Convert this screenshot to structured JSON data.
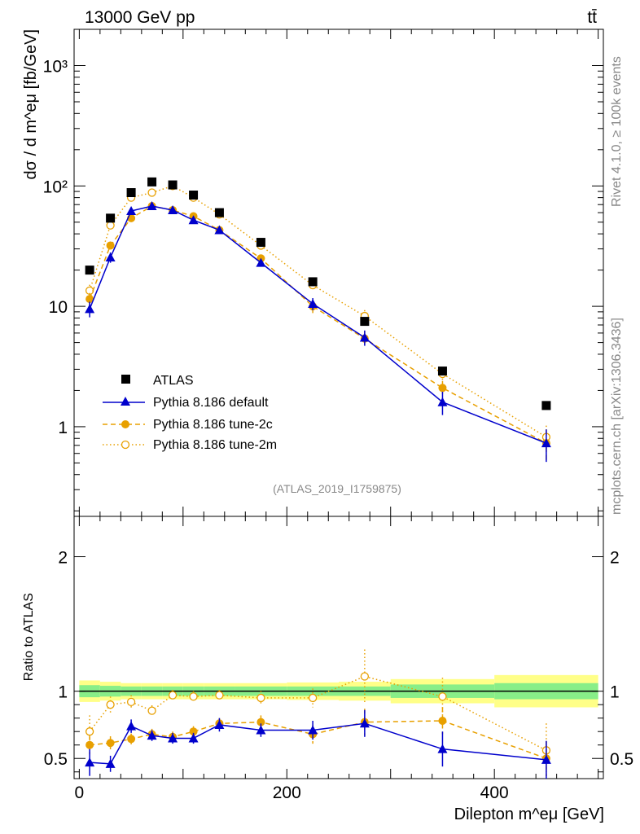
{
  "header": {
    "energy_label": "13000 GeV pp",
    "process_label": "tt̄"
  },
  "side_labels": {
    "rivet": "Rivet 4.1.0, ≥ 100k events",
    "mcplots": "mcplots.cern.ch [arXiv:1306.3436]"
  },
  "analysis_id": "(ATLAS_2019_I1759875)",
  "colors": {
    "atlas": "#000000",
    "default": "#0000cc",
    "tune2c": "#e8a000",
    "tune2m": "#e8a000",
    "band_inner": "#88ee88",
    "band_outer": "#ffff88"
  },
  "chart_data": [
    {
      "type": "scatter",
      "panel": "main",
      "ylabel": "dσ / d m^eμ [fb/GeV]",
      "yscale": "log",
      "ylim": [
        0.18,
        2000
      ],
      "xlim": [
        -5,
        505
      ],
      "yticks": [
        {
          "value": 1,
          "label": "1"
        },
        {
          "value": 10,
          "label": "10"
        },
        {
          "value": 100,
          "label": "10²"
        },
        {
          "value": 1000,
          "label": "10³"
        }
      ],
      "x": [
        10,
        30,
        50,
        70,
        90,
        110,
        135,
        175,
        225,
        275,
        350,
        450
      ],
      "series": [
        {
          "name": "ATLAS",
          "style": "square",
          "values": [
            20,
            54,
            88,
            108,
            102,
            84,
            60,
            34,
            16,
            7.5,
            2.9,
            1.5
          ]
        },
        {
          "name": "Pythia 8.186 default",
          "style": "triangle-solid",
          "values": [
            9.5,
            25.5,
            62,
            68,
            63,
            52,
            43,
            23,
            10.5,
            5.5,
            1.6,
            0.73
          ],
          "errors": [
            1.4,
            2.5,
            3,
            2.5,
            2.5,
            2.5,
            2,
            1.5,
            1.2,
            0.8,
            0.35,
            0.22
          ]
        },
        {
          "name": "Pythia 8.186 tune-2c",
          "style": "circle-dashed",
          "values": [
            11.5,
            32,
            54,
            68,
            63,
            56,
            43,
            25,
            10,
            5.4,
            2.1,
            0.73
          ],
          "errors": [
            1.4,
            2.5,
            3,
            2.5,
            2.5,
            2.5,
            2,
            1.5,
            1.2,
            0.8,
            0.3,
            0.2
          ]
        },
        {
          "name": "Pythia 8.186 tune-2m",
          "style": "circle-open-dotted",
          "values": [
            13.5,
            47,
            80,
            88,
            100,
            80,
            58,
            32,
            15,
            8.3,
            2.75,
            0.82
          ],
          "errors": [
            1.6,
            3,
            4,
            3,
            3,
            3,
            2.5,
            2,
            1.5,
            1,
            0.35,
            0.2
          ]
        }
      ]
    },
    {
      "type": "scatter",
      "panel": "ratio",
      "ylabel": "Ratio to ATLAS",
      "xlabel": "Dilepton m^eμ [GeV]",
      "xlim": [
        -5,
        505
      ],
      "ylim": [
        0.35,
        2.3
      ],
      "xticks": [
        0,
        200,
        400
      ],
      "yticks": [
        0.5,
        1,
        2
      ],
      "x": [
        10,
        30,
        50,
        70,
        90,
        110,
        135,
        175,
        225,
        275,
        350,
        450
      ],
      "band": {
        "edges": [
          0,
          20,
          40,
          60,
          80,
          100,
          120,
          150,
          200,
          250,
          300,
          400,
          500
        ],
        "inner": [
          0.045,
          0.04,
          0.035,
          0.035,
          0.035,
          0.035,
          0.035,
          0.035,
          0.035,
          0.035,
          0.05,
          0.06
        ],
        "outer": [
          0.08,
          0.07,
          0.06,
          0.06,
          0.06,
          0.06,
          0.06,
          0.06,
          0.065,
          0.07,
          0.09,
          0.12
        ]
      },
      "series": [
        {
          "name": "Pythia 8.186 default",
          "values": [
            0.47,
            0.46,
            0.74,
            0.67,
            0.65,
            0.65,
            0.75,
            0.71,
            0.71,
            0.76,
            0.57,
            0.49
          ],
          "errors": [
            0.1,
            0.06,
            0.05,
            0.04,
            0.04,
            0.04,
            0.05,
            0.05,
            0.07,
            0.1,
            0.13,
            0.14
          ]
        },
        {
          "name": "Pythia 8.186 tune-2c",
          "values": [
            0.6,
            0.615,
            0.645,
            0.68,
            0.66,
            0.7,
            0.76,
            0.77,
            0.68,
            0.77,
            0.78,
            0.5
          ],
          "errors": [
            0.07,
            0.05,
            0.04,
            0.04,
            0.04,
            0.04,
            0.04,
            0.05,
            0.07,
            0.1,
            0.1,
            0.13
          ]
        },
        {
          "name": "Pythia 8.186 tune-2m",
          "values": [
            0.7,
            0.9,
            0.92,
            0.855,
            0.97,
            0.96,
            0.97,
            0.95,
            0.95,
            1.11,
            0.96,
            0.56
          ],
          "errors": [
            0.12,
            0.06,
            0.05,
            0.04,
            0.04,
            0.04,
            0.04,
            0.05,
            0.07,
            0.2,
            0.14,
            0.2
          ]
        }
      ]
    }
  ]
}
